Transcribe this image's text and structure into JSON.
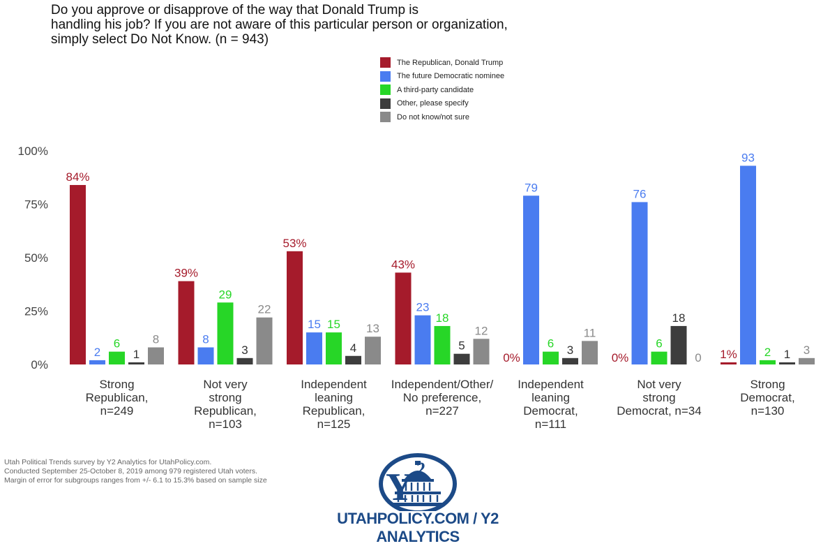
{
  "title_lines": [
    "Do you approve or disapprove of the way that Donald Trump is",
    "handling his job? If you are not aware of this particular person or organization,",
    "simply select Do Not Know. (n = 943)"
  ],
  "footnote": [
    "Utah Political Trends survey by Y2 Analytics for UtahPolicy.com.",
    "Conducted September 25-October 8, 2019 among 979 registered Utah voters.",
    "Margin of error for subgroups ranges from +/- 6.1 to 15.3% based on sample size"
  ],
  "logo": {
    "text": "UTAHPOLICY.COM / Y2 ANALYTICS",
    "mark": "Y2"
  },
  "colors": {
    "republican": "#a51b2b",
    "democrat": "#4a7cf0",
    "third_party": "#27d627",
    "other": "#3d3d3d",
    "dont_know": "#8a8a8a"
  },
  "chart_data": {
    "type": "bar",
    "ylim": [
      0,
      100
    ],
    "y_ticks": [
      "0%",
      "25%",
      "50%",
      "75%",
      "100%"
    ],
    "y_tick_values": [
      0,
      25,
      50,
      75,
      100
    ],
    "legend_position": "top-center",
    "grid": false,
    "categories": [
      [
        "Strong",
        "Republican,",
        "n=249"
      ],
      [
        "Not very",
        "strong",
        "Republican,",
        "n=103"
      ],
      [
        "Independent",
        "leaning",
        "Republican,",
        "n=125"
      ],
      [
        "Independent/Other/",
        "No preference,",
        "n=227"
      ],
      [
        "Independent",
        "leaning",
        "Democrat,",
        "n=111"
      ],
      [
        "Not very",
        "strong",
        "Democrat, n=34"
      ],
      [
        "Strong",
        "Democrat,",
        "n=130"
      ]
    ],
    "series": [
      {
        "name": "The Republican, Donald Trump",
        "color": "#a51b2b",
        "values": [
          84,
          39,
          53,
          43,
          0,
          0,
          1
        ],
        "labels": [
          "84%",
          "39%",
          "53%",
          "43%",
          "0%",
          "0%",
          "1%"
        ]
      },
      {
        "name": "The future Democratic nominee",
        "color": "#4a7cf0",
        "values": [
          2,
          8,
          15,
          23,
          79,
          76,
          93
        ],
        "labels": [
          "2",
          "8",
          "15",
          "23",
          "79",
          "76",
          "93"
        ]
      },
      {
        "name": "A third-party candidate",
        "color": "#27d627",
        "values": [
          6,
          29,
          15,
          18,
          6,
          6,
          2
        ],
        "labels": [
          "6",
          "29",
          "15",
          "18",
          "6",
          "6",
          "2"
        ]
      },
      {
        "name": "Other, please specify",
        "color": "#3d3d3d",
        "values": [
          1,
          3,
          4,
          5,
          3,
          18,
          1
        ],
        "labels": [
          "1",
          "3",
          "4",
          "5",
          "3",
          "18",
          "1"
        ]
      },
      {
        "name": "Do not know/not sure",
        "color": "#8a8a8a",
        "values": [
          8,
          22,
          13,
          12,
          11,
          0,
          3
        ],
        "labels": [
          "8",
          "22",
          "13",
          "12",
          "11",
          "0",
          "3"
        ]
      }
    ]
  }
}
